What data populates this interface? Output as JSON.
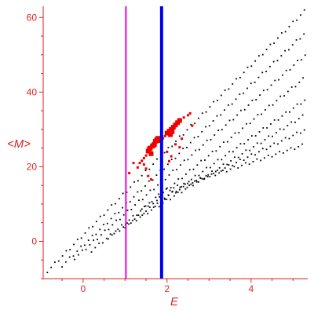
{
  "chart_data": {
    "type": "scatter",
    "title": "",
    "xlabel": "E",
    "ylabel": "<M>",
    "xlim": [
      -0.95,
      5.35
    ],
    "ylim": [
      -10,
      63
    ],
    "x_ticks": [
      0,
      2,
      4
    ],
    "y_ticks": [
      0,
      20,
      40,
      60
    ],
    "axis_color": "#dd2222",
    "background": "#ffffff",
    "vertical_lines": [
      {
        "x": 1.02,
        "color": "#ee00ee",
        "style": "thin"
      },
      {
        "x": 1.87,
        "color": "#0000ee",
        "style": "thick"
      }
    ],
    "series": [
      {
        "color": "#000000",
        "marker": "small-dot",
        "generator": "banded-lattice",
        "bands": [
          {
            "x": [
              -0.85,
              5.3
            ],
            "y": [
              -8,
              62
            ]
          },
          {
            "x": [
              -0.5,
              5.3
            ],
            "y": [
              -6.5,
              56
            ]
          },
          {
            "x": [
              -0.2,
              5.3
            ],
            "y": [
              -4.5,
              50
            ]
          },
          {
            "x": [
              0.2,
              5.3
            ],
            "y": [
              -2.5,
              44
            ]
          },
          {
            "x": [
              0.6,
              5.3
            ],
            "y": [
              1,
              38
            ]
          },
          {
            "x": [
              1.0,
              5.3
            ],
            "y": [
              4,
              34
            ]
          },
          {
            "x": [
              1.4,
              5.3
            ],
            "y": [
              9,
              30
            ]
          },
          {
            "x": [
              1.8,
              5.3
            ],
            "y": [
              13,
              26
            ]
          }
        ]
      },
      {
        "color": "#ee0000",
        "marker": "square",
        "points": [
          [
            1.55,
            24.2
          ],
          [
            1.6,
            25.0
          ],
          [
            1.65,
            25.5
          ],
          [
            1.7,
            26.0
          ],
          [
            1.72,
            26.8
          ],
          [
            1.75,
            27.2
          ],
          [
            1.78,
            27.6
          ],
          [
            1.8,
            27.0
          ],
          [
            1.62,
            23.5
          ],
          [
            1.58,
            24.8
          ],
          [
            1.68,
            25.8
          ],
          [
            1.5,
            23.0
          ],
          [
            1.45,
            22.3
          ],
          [
            1.4,
            21.6
          ],
          [
            1.35,
            21.0
          ],
          [
            2.0,
            29.0
          ],
          [
            2.05,
            29.5
          ],
          [
            2.1,
            30.0
          ],
          [
            2.15,
            30.6
          ],
          [
            2.2,
            31.2
          ],
          [
            2.25,
            31.8
          ],
          [
            2.3,
            32.4
          ],
          [
            2.4,
            33.2
          ],
          [
            2.5,
            33.8
          ],
          [
            2.55,
            34.3
          ],
          [
            1.95,
            28.2
          ],
          [
            1.9,
            27.6
          ],
          [
            2.08,
            28.6
          ],
          [
            2.12,
            29.4
          ],
          [
            1.2,
            21.0
          ],
          [
            1.3,
            19.8
          ],
          [
            1.45,
            20.6
          ],
          [
            1.1,
            18.3
          ],
          [
            1.5,
            19.5
          ],
          [
            1.55,
            17.5
          ],
          [
            1.62,
            16.6
          ],
          [
            2.0,
            24.0
          ],
          [
            2.05,
            21.5
          ],
          [
            2.1,
            22.8
          ],
          [
            2.2,
            26.0
          ],
          [
            2.3,
            25.2
          ],
          [
            2.35,
            27.5
          ],
          [
            2.6,
            31.0
          ]
        ]
      }
    ],
    "grid": false,
    "legend": "none"
  }
}
